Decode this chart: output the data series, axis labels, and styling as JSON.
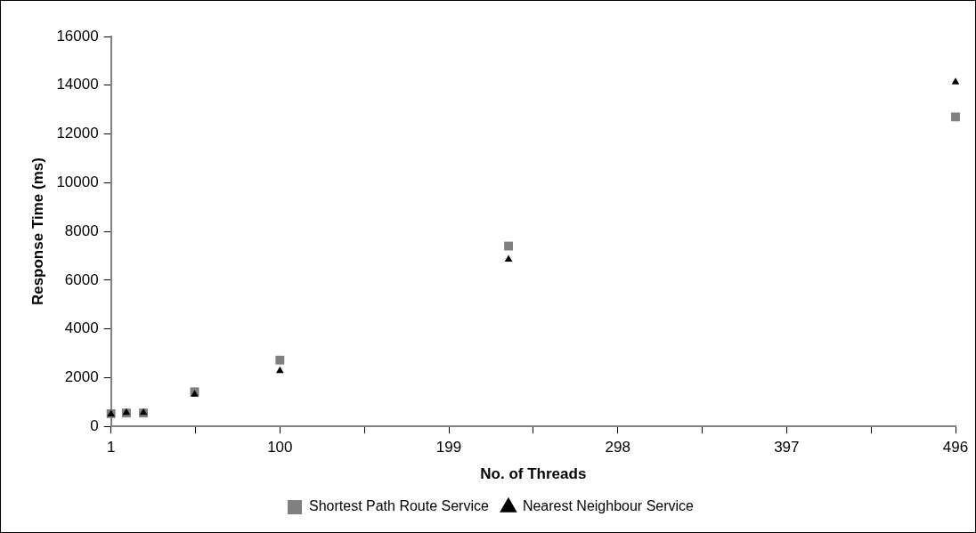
{
  "chart_data": {
    "type": "scatter",
    "xlabel": "No. of Threads",
    "ylabel": "Response Time (ms)",
    "x": [
      1,
      10,
      20,
      50,
      100,
      234,
      496
    ],
    "series": [
      {
        "name": "Shortest Path Route Service",
        "color": "#808080",
        "marker": "square",
        "values": [
          520,
          550,
          550,
          1420,
          2720,
          7400,
          12700
        ]
      },
      {
        "name": "Nearest Neighbour Service",
        "color": "#000000",
        "marker": "triangle",
        "values": [
          500,
          560,
          560,
          1310,
          2280,
          6850,
          14130
        ]
      }
    ],
    "xlim": [
      1,
      496
    ],
    "xticks": [
      1,
      {
        "value": 50.5,
        "label": null
      },
      100,
      {
        "value": 149.5,
        "label": null
      },
      199,
      {
        "value": 248.5,
        "label": null
      },
      298,
      {
        "value": 347.5,
        "label": null
      },
      397,
      {
        "value": 446.5,
        "label": null
      },
      496
    ],
    "ylim": [
      0,
      16000
    ],
    "yticks": [
      0,
      2000,
      4000,
      6000,
      8000,
      10000,
      12000,
      14000,
      16000
    ],
    "grid": false,
    "legend": "bottom"
  }
}
